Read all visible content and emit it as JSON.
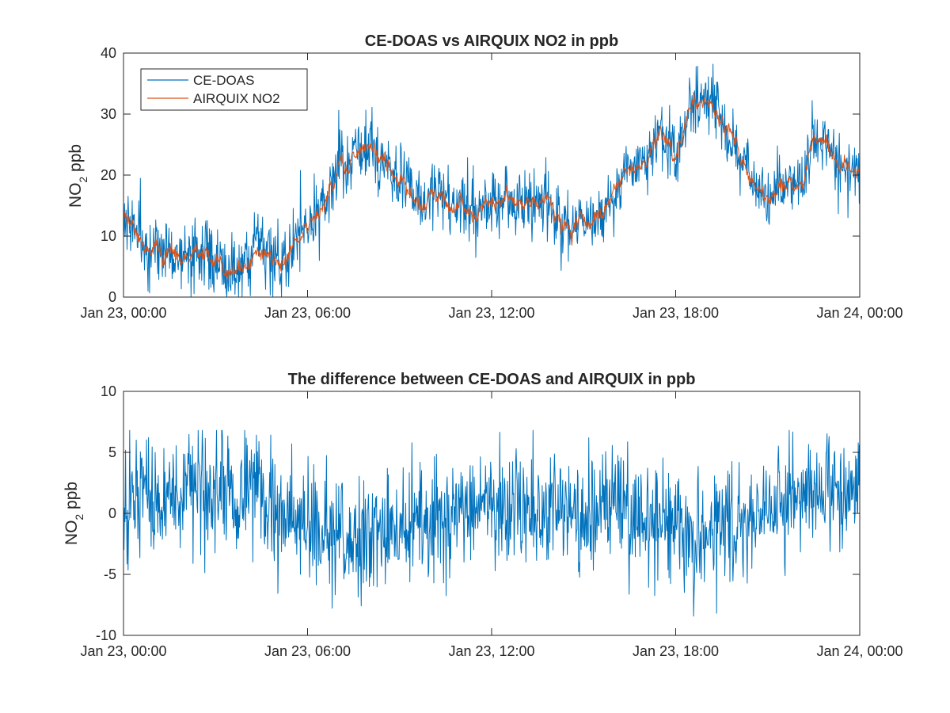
{
  "figure": {
    "background": "#ffffff",
    "axis_color": "#262626",
    "series_colors": {
      "ce_doas": "#0072BD",
      "airquix": "#D95319"
    }
  },
  "chart_data": [
    {
      "type": "line",
      "title": "CE-DOAS vs AIRQUIX NO2 in ppb",
      "ylabel": {
        "main": "NO",
        "sub": "2",
        "rest": " ppb"
      },
      "xlabel": "",
      "x_unit": "hours since Jan 23, 00:00",
      "xlim": [
        0,
        24
      ],
      "ylim": [
        0,
        40
      ],
      "yticks": [
        0,
        10,
        20,
        30,
        40
      ],
      "ytick_labels": [
        "0",
        "10",
        "20",
        "30",
        "40"
      ],
      "xticks": [
        0,
        6,
        12,
        18,
        24
      ],
      "xtick_labels": [
        "Jan 23, 00:00",
        "Jan 23, 06:00",
        "Jan 23, 12:00",
        "Jan 23, 18:00",
        "Jan 24, 00:00"
      ],
      "grid": false,
      "legend": {
        "position": "top-left",
        "entries": [
          "CE-DOAS",
          "AIRQUIX NO2"
        ]
      },
      "series": [
        {
          "name": "CE-DOAS",
          "color": "#0072BD",
          "noise_ppb": 2.8,
          "note": "noisy minute-resolution measurement around the trend",
          "trend": [
            [
              0,
              13
            ],
            [
              0.3,
              10.5
            ],
            [
              0.7,
              7
            ],
            [
              1.5,
              7.5
            ],
            [
              2.2,
              8.5
            ],
            [
              3,
              6.5
            ],
            [
              3.5,
              4.5
            ],
            [
              4.5,
              6.5
            ],
            [
              5.3,
              7
            ],
            [
              5.7,
              9
            ],
            [
              6.1,
              15
            ],
            [
              6.6,
              17
            ],
            [
              7,
              21
            ],
            [
              7.5,
              22.5
            ],
            [
              8,
              24
            ],
            [
              8.3,
              22.5
            ],
            [
              8.6,
              19
            ],
            [
              9,
              17.5
            ],
            [
              9.5,
              18
            ],
            [
              10,
              17
            ],
            [
              11,
              16
            ],
            [
              12,
              15
            ],
            [
              13,
              14
            ],
            [
              13.8,
              14.5
            ],
            [
              14.5,
              11.5
            ],
            [
              15,
              11
            ],
            [
              15.5,
              13.5
            ],
            [
              16,
              18
            ],
            [
              16.5,
              20
            ],
            [
              17,
              21
            ],
            [
              17.5,
              29
            ],
            [
              18,
              25
            ],
            [
              18.5,
              30
            ],
            [
              19,
              32
            ],
            [
              19.5,
              28
            ],
            [
              20,
              25
            ],
            [
              20.5,
              20
            ],
            [
              21,
              18
            ],
            [
              21.5,
              19.5
            ],
            [
              22,
              20
            ],
            [
              22.5,
              23
            ],
            [
              23,
              21
            ],
            [
              23.5,
              20
            ],
            [
              24,
              19
            ]
          ]
        },
        {
          "name": "AIRQUIX NO2",
          "color": "#D95319",
          "noise_ppb": 1.0,
          "note": "smoother reference measurement following the trend",
          "trend": [
            [
              0,
              13
            ],
            [
              0.3,
              10.5
            ],
            [
              0.7,
              7
            ],
            [
              1.5,
              7.5
            ],
            [
              2.2,
              8.5
            ],
            [
              3,
              6.5
            ],
            [
              3.5,
              4.5
            ],
            [
              4.5,
              6.5
            ],
            [
              5.3,
              7
            ],
            [
              5.7,
              9
            ],
            [
              6.1,
              15
            ],
            [
              6.6,
              17
            ],
            [
              7,
              21
            ],
            [
              7.5,
              22.5
            ],
            [
              8,
              24
            ],
            [
              8.3,
              22.5
            ],
            [
              8.6,
              19
            ],
            [
              9,
              17.5
            ],
            [
              9.5,
              18
            ],
            [
              10,
              17
            ],
            [
              11,
              16
            ],
            [
              12,
              15
            ],
            [
              13,
              14
            ],
            [
              13.8,
              14.5
            ],
            [
              14.5,
              11.5
            ],
            [
              15,
              11
            ],
            [
              15.5,
              13.5
            ],
            [
              16,
              18
            ],
            [
              16.5,
              20
            ],
            [
              17,
              21
            ],
            [
              17.5,
              29
            ],
            [
              18,
              25
            ],
            [
              18.5,
              30
            ],
            [
              19,
              32
            ],
            [
              19.5,
              28
            ],
            [
              20,
              25
            ],
            [
              20.5,
              20
            ],
            [
              21,
              18
            ],
            [
              21.5,
              19.5
            ],
            [
              22,
              20
            ],
            [
              22.5,
              23
            ],
            [
              23,
              21
            ],
            [
              23.5,
              20
            ],
            [
              24,
              19
            ]
          ]
        }
      ]
    },
    {
      "type": "line",
      "title": "The difference between CE-DOAS and AIRQUIX in ppb",
      "ylabel": {
        "main": "NO",
        "sub": "2",
        "rest": " ppb"
      },
      "xlabel": "",
      "x_unit": "hours since Jan 23, 00:00",
      "xlim": [
        0,
        24
      ],
      "ylim": [
        -10,
        10
      ],
      "yticks": [
        -10,
        -5,
        0,
        5,
        10
      ],
      "ytick_labels": [
        "-10",
        "-5",
        "0",
        "5",
        "10"
      ],
      "xticks": [
        0,
        6,
        12,
        18,
        24
      ],
      "xtick_labels": [
        "Jan 23, 00:00",
        "Jan 23, 06:00",
        "Jan 23, 12:00",
        "Jan 23, 18:00",
        "Jan 24, 00:00"
      ],
      "grid": false,
      "series": [
        {
          "name": "",
          "color": "#0072BD",
          "noise_ppb": 2.4,
          "range_observed": [
            -9,
            6.8
          ],
          "trend": [
            [
              0,
              0.5
            ],
            [
              2.5,
              1.8
            ],
            [
              3.5,
              1.5
            ],
            [
              5,
              0.5
            ],
            [
              6.5,
              -2
            ],
            [
              8,
              -1.5
            ],
            [
              9.5,
              -0.5
            ],
            [
              12,
              0.5
            ],
            [
              14,
              0.3
            ],
            [
              16,
              0.5
            ],
            [
              17.5,
              -1
            ],
            [
              19,
              -1.5
            ],
            [
              20,
              -1
            ],
            [
              21.5,
              0.5
            ],
            [
              22.5,
              2.5
            ],
            [
              24,
              1.5
            ]
          ]
        }
      ]
    }
  ]
}
